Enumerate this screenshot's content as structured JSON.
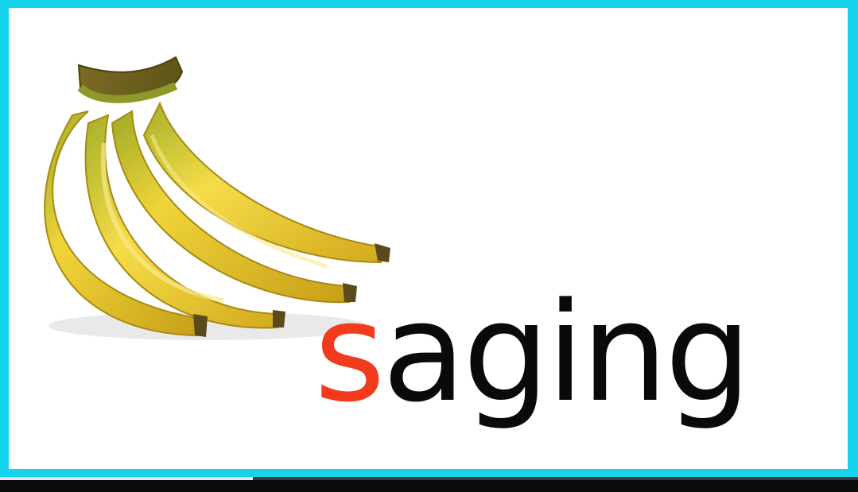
{
  "word": {
    "first_letter": "s",
    "rest": "aging"
  },
  "colors": {
    "frame": "#16d4ee",
    "first_letter": "#f23a1c",
    "rest": "#0a0a0a"
  },
  "image": {
    "icon": "banana-bunch-icon"
  },
  "player": {
    "progress": 0.295
  }
}
